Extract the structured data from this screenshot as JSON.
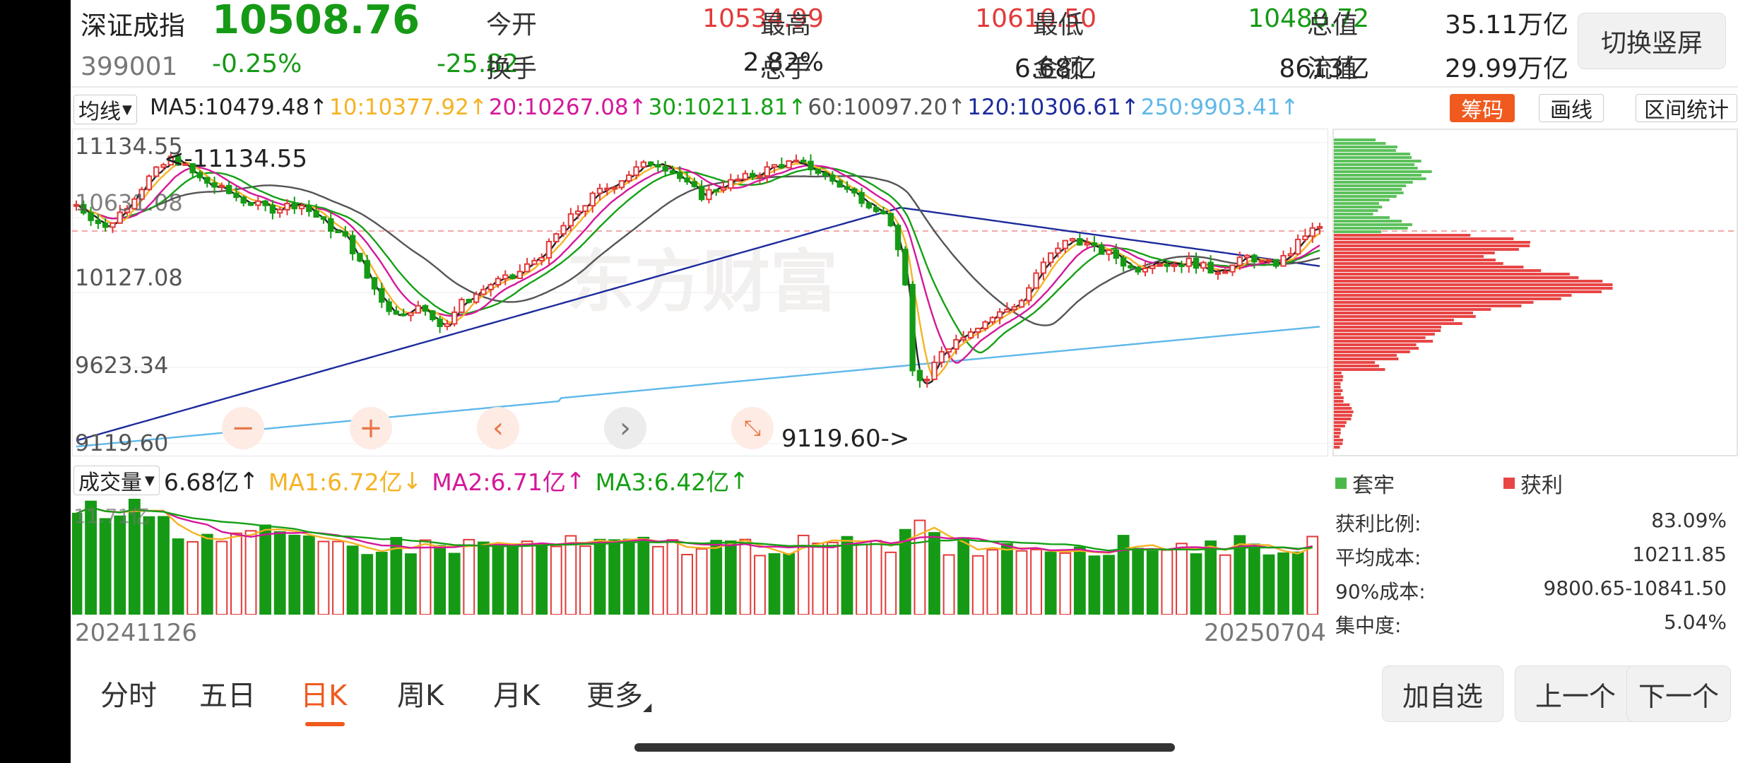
{
  "quote": {
    "name": "深证成指",
    "price": "10508.76",
    "code": "399001",
    "pct": "-0.25%",
    "chg": "-25.82",
    "fields": [
      {
        "label": "今开",
        "value": "10534.99",
        "color": "#e23a3a"
      },
      {
        "label": "最高",
        "value": "10610.50",
        "color": "#e23a3a"
      },
      {
        "label": "最低",
        "value": "10480.72",
        "color": "#169a16"
      },
      {
        "label": "总值",
        "value": "35.11万亿",
        "color": "#222222"
      },
      {
        "label": "换手",
        "value": "2.82%",
        "color": "#222222"
      },
      {
        "label": "总手",
        "value": "6.68亿",
        "color": "#222222"
      },
      {
        "label": "金额",
        "value": "8613亿",
        "color": "#222222"
      },
      {
        "label": "流值",
        "value": "29.99万亿",
        "color": "#222222"
      }
    ],
    "switch_label": "切换竖屏"
  },
  "ma_select_label": "均线",
  "ma_items": [
    {
      "text": "MA5:10479.48",
      "color": "#222222"
    },
    {
      "text": "10:10377.92",
      "color": "#f5b324"
    },
    {
      "text": "20:10267.08",
      "color": "#d4189a"
    },
    {
      "text": "30:10211.81",
      "color": "#15a015"
    },
    {
      "text": "60:10097.20",
      "color": "#555555"
    },
    {
      "text": "120:10306.61",
      "color": "#1c2b9c"
    },
    {
      "text": "250:9903.41",
      "color": "#5fb8ea"
    }
  ],
  "chart_tabs": {
    "chouma": "筹码",
    "huaxian": "画线",
    "qujian": "区间统计"
  },
  "chart_data": {
    "type": "candlestick",
    "y_axis_labels": [
      "11134.55",
      "10631.08",
      "10127.08",
      "9623.34",
      "9119.60"
    ],
    "high_annotation": "<-11134.55",
    "low_annotation": "9119.60->",
    "watermark": "东方财富",
    "last_price_line": 10508.76,
    "date_start": "20241126",
    "date_end": "20250704",
    "ma_colors": {
      "ma5": "#222222",
      "ma10": "#f5b324",
      "ma20": "#d4189a",
      "ma30": "#15a015",
      "ma60": "#555555",
      "ma120": "#1c2b9c",
      "ma250": "#5fb8ea"
    },
    "up_color": "#e23a3a",
    "down_color": "#169a16"
  },
  "volume": {
    "select_label": "成交量",
    "value": "6.68亿",
    "ma1": "MA1:6.72亿",
    "ma2": "MA2:6.71亿",
    "ma3": "MA3:6.42亿",
    "top_label": "11.71亿"
  },
  "chip": {
    "legend_loss": "套牢",
    "legend_profit": "获利",
    "stats": [
      {
        "label": "获利比例:",
        "value": "83.09%"
      },
      {
        "label": "平均成本:",
        "value": "10211.85"
      },
      {
        "label": "90%成本:",
        "value": "9800.65-10841.50"
      },
      {
        "label": "集中度:",
        "value": "5.04%"
      }
    ]
  },
  "period_tabs": [
    "分时",
    "五日",
    "日K",
    "周K",
    "月K",
    "更多"
  ],
  "active_tab": "日K",
  "bottom_buttons": {
    "add": "加自选",
    "prev": "上一个",
    "next": "下一个"
  },
  "nav_buttons": {
    "zoom_out": "−",
    "zoom_in": "+",
    "left": "‹",
    "right": "›"
  }
}
